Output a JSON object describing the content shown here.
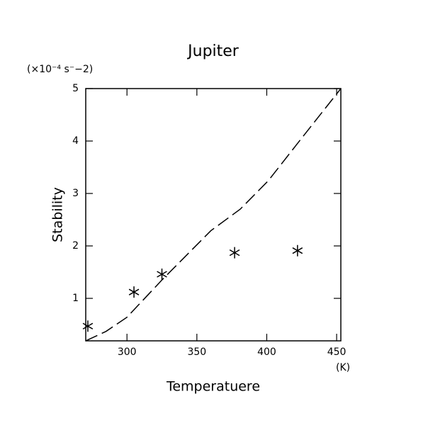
{
  "chart_data": {
    "type": "line",
    "title": "Jupiter",
    "y_unit": "(×10⁻⁴ s⁻−2)",
    "x_unit": "(K)",
    "x_label": "Temperatuere",
    "y_label": "Stability",
    "xlim": [
      270.5,
      453
    ],
    "ylim": [
      0.19,
      5
    ],
    "xticks": [
      300,
      350,
      400,
      450
    ],
    "yticks": [
      1,
      2,
      3,
      4,
      5
    ],
    "series": [
      {
        "type": "line",
        "color": "#000000",
        "dashed": true,
        "x": [
          270.5,
          285,
          300,
          325,
          360,
          381,
          401,
          421,
          453
        ],
        "values": [
          0.19,
          0.37,
          0.64,
          1.35,
          2.29,
          2.7,
          3.24,
          3.92,
          5
        ]
      },
      {
        "type": "scatter",
        "color": "#000000",
        "marker": "star",
        "x": [
          272,
          305,
          325,
          377,
          422
        ],
        "values": [
          0.47,
          1.12,
          1.46,
          1.87,
          1.91
        ]
      }
    ]
  }
}
